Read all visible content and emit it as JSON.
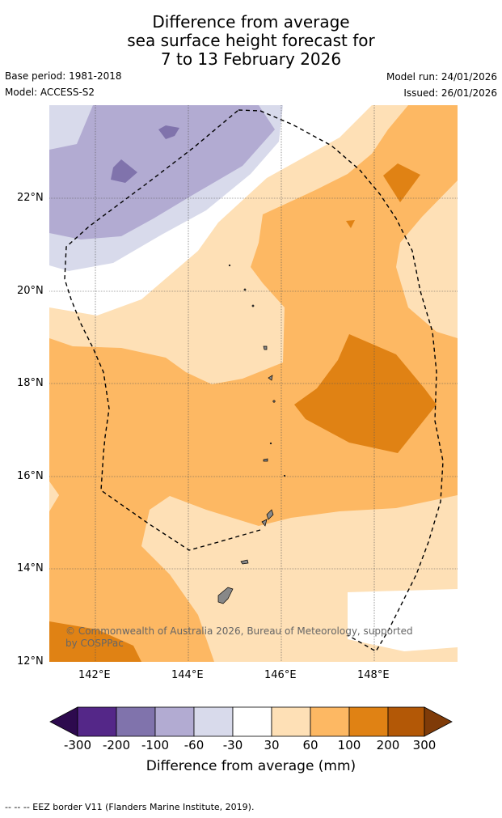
{
  "title": {
    "line1": "Difference from average",
    "line2": "sea surface height forecast for",
    "line3": "7 to 13 February 2026"
  },
  "meta": {
    "base_period": "Base period: 1981-2018",
    "model": "Model: ACCESS-S2",
    "model_run": "Model run: 24/01/2026",
    "issued": "Issued: 26/01/2026"
  },
  "map": {
    "copyright_line1": "© Commonwealth of Australia 2026, Bureau of Meteorology, supported",
    "copyright_line2": "by COSPPac",
    "lat_ticks": [
      "22°N",
      "20°N",
      "18°N",
      "16°N",
      "14°N",
      "12°N"
    ],
    "lon_ticks": [
      "142°E",
      "144°E",
      "146°E",
      "148°E"
    ]
  },
  "colorbar": {
    "tick_labels": [
      "-300",
      "-200",
      "-100",
      "-60",
      "-30",
      "30",
      "60",
      "100",
      "200",
      "300"
    ],
    "colors": [
      "#2d0a4e",
      "#542788",
      "#8073ac",
      "#b2abd2",
      "#d8daeb",
      "#ffffff",
      "#fee0b6",
      "#fdb863",
      "#e08214",
      "#b35806",
      "#7f3b08"
    ],
    "label": "Difference from average (mm)"
  },
  "footnote": "--  --  -- EEZ border V11 (Flanders Marine Institute, 2019)."
}
